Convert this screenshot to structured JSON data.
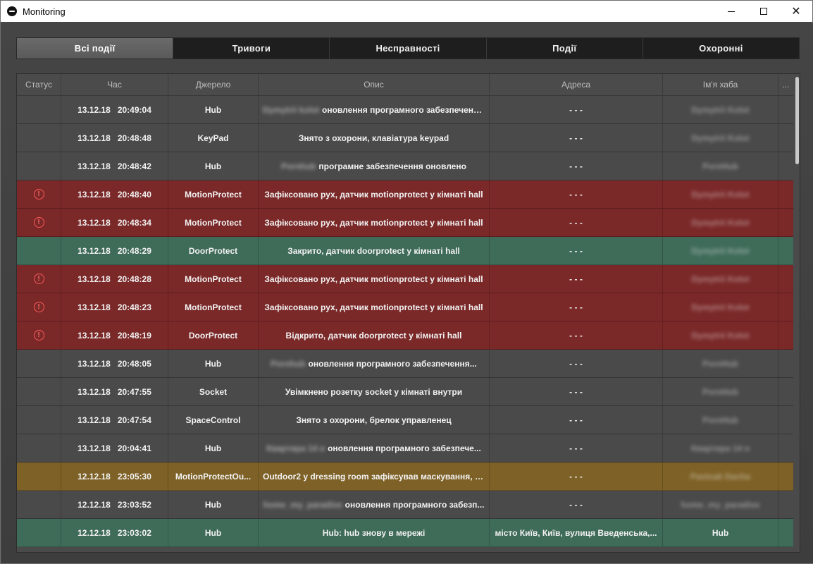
{
  "window": {
    "title": "Monitoring"
  },
  "tabs": [
    {
      "label": "Всі події",
      "active": true
    },
    {
      "label": "Тривоги",
      "active": false
    },
    {
      "label": "Несправності",
      "active": false
    },
    {
      "label": "Події",
      "active": false
    },
    {
      "label": "Охоронні",
      "active": false
    }
  ],
  "columns": [
    "Статус",
    "Час",
    "Джерело",
    "Опис",
    "Адреса",
    "Ім'я хаба",
    "..."
  ],
  "rows": [
    {
      "type": "normal",
      "alarm": false,
      "date": "13.12.18",
      "time": "20:49:04",
      "source": "Hub",
      "desc_blur": "Dymytrii kolot",
      "desc": "оновлення програмного забезпеченн...",
      "address": "- - -",
      "hub": "Dymytrii Kolot",
      "hub_blur": true
    },
    {
      "type": "normal",
      "alarm": false,
      "date": "13.12.18",
      "time": "20:48:48",
      "source": "KeyPad",
      "desc_blur": "",
      "desc": "Знято з охорони, клавіатура keypad",
      "address": "- - -",
      "hub": "Dymytrii Kolot",
      "hub_blur": true
    },
    {
      "type": "normal",
      "alarm": false,
      "date": "13.12.18",
      "time": "20:48:42",
      "source": "Hub",
      "desc_blur": "Pornhub",
      "desc": "програмне забезпечення оновлено",
      "address": "- - -",
      "hub": "PornHub",
      "hub_blur": true
    },
    {
      "type": "alarm",
      "alarm": true,
      "date": "13.12.18",
      "time": "20:48:40",
      "source": "MotionProtect",
      "desc_blur": "",
      "desc": "Зафіксовано рух, датчик motionprotect у кімнаті hall",
      "address": "- - -",
      "hub": "Dymytrii Kolot",
      "hub_blur": true
    },
    {
      "type": "alarm",
      "alarm": true,
      "date": "13.12.18",
      "time": "20:48:34",
      "source": "MotionProtect",
      "desc_blur": "",
      "desc": "Зафіксовано рух, датчик motionprotect у кімнаті hall",
      "address": "- - -",
      "hub": "Dymytrii Kolot",
      "hub_blur": true
    },
    {
      "type": "ok",
      "alarm": false,
      "date": "13.12.18",
      "time": "20:48:29",
      "source": "DoorProtect",
      "desc_blur": "",
      "desc": "Закрито, датчик doorprotect у кімнаті hall",
      "address": "- - -",
      "hub": "Dymytrii Kolot",
      "hub_blur": true
    },
    {
      "type": "alarm",
      "alarm": true,
      "date": "13.12.18",
      "time": "20:48:28",
      "source": "MotionProtect",
      "desc_blur": "",
      "desc": "Зафіксовано рух, датчик motionprotect у кімнаті hall",
      "address": "- - -",
      "hub": "Dymytrii Kolot",
      "hub_blur": true
    },
    {
      "type": "alarm",
      "alarm": true,
      "date": "13.12.18",
      "time": "20:48:23",
      "source": "MotionProtect",
      "desc_blur": "",
      "desc": "Зафіксовано рух, датчик motionprotect у кімнаті hall",
      "address": "- - -",
      "hub": "Dymytrii Kolot",
      "hub_blur": true
    },
    {
      "type": "alarm",
      "alarm": true,
      "date": "13.12.18",
      "time": "20:48:19",
      "source": "DoorProtect",
      "desc_blur": "",
      "desc": "Відкрито, датчик doorprotect у кімнаті hall",
      "address": "- - -",
      "hub": "Dymytrii Kolot",
      "hub_blur": true
    },
    {
      "type": "normal",
      "alarm": false,
      "date": "13.12.18",
      "time": "20:48:05",
      "source": "Hub",
      "desc_blur": "Pornhub",
      "desc": "оновлення програмного забезпечення...",
      "address": "- - -",
      "hub": "PornHub",
      "hub_blur": true
    },
    {
      "type": "normal",
      "alarm": false,
      "date": "13.12.18",
      "time": "20:47:55",
      "source": "Socket",
      "desc_blur": "",
      "desc": "Увімкнено розетку socket у кімнаті внутри",
      "address": "- - -",
      "hub": "PornHub",
      "hub_blur": true
    },
    {
      "type": "normal",
      "alarm": false,
      "date": "13.12.18",
      "time": "20:47:54",
      "source": "SpaceControl",
      "desc_blur": "",
      "desc": "Знято з охорони, брелок управленец",
      "address": "- - -",
      "hub": "PornHub",
      "hub_blur": true
    },
    {
      "type": "normal",
      "alarm": false,
      "date": "13.12.18",
      "time": "20:04:41",
      "source": "Hub",
      "desc_blur": "Квартира 14 н",
      "desc": "оновлення програмного забезпече...",
      "address": "- - -",
      "hub": "Квартира 14 н",
      "hub_blur": true
    },
    {
      "type": "warn",
      "alarm": false,
      "date": "12.12.18",
      "time": "23:05:30",
      "source": "MotionProtectOu...",
      "desc_blur": "",
      "desc": "Outdoor2 у dressing room зафіксував маскування, п...",
      "address": "- - -",
      "hub": "Pantsak Dacha",
      "hub_blur": true
    },
    {
      "type": "normal",
      "alarm": false,
      "date": "12.12.18",
      "time": "23:03:52",
      "source": "Hub",
      "desc_blur": "home_my_paradise",
      "desc": "оновлення програмного забезп...",
      "address": "- - -",
      "hub": "home_my_paradise",
      "hub_blur": true
    },
    {
      "type": "ok",
      "alarm": false,
      "date": "12.12.18",
      "time": "23:03:02",
      "source": "Hub",
      "desc_blur": "",
      "desc": "Hub: hub знову в мережі",
      "address": "місто Київ, Київ, вулиця Введенська,...",
      "hub": "Hub",
      "hub_blur": false
    }
  ]
}
